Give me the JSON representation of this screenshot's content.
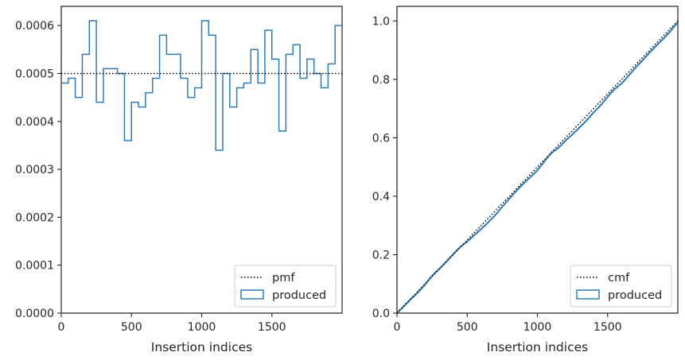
{
  "chart_data": [
    {
      "type": "step",
      "xlabel": "Insertion indices",
      "ylabel": "",
      "xlim": [
        0,
        2000
      ],
      "ylim": [
        0,
        0.00064
      ],
      "xticks": [
        0,
        500,
        1000,
        1500
      ],
      "xtick_labels": [
        "0",
        "500",
        "1000",
        "1500"
      ],
      "yticks": [
        0,
        0.0001,
        0.0002,
        0.0003,
        0.0004,
        0.0005,
        0.0006
      ],
      "ytick_labels": [
        "0.0000",
        "0.0001",
        "0.0002",
        "0.0003",
        "0.0004",
        "0.0005",
        "0.0006"
      ],
      "legend_position": "lower-right",
      "series": [
        {
          "name": "pmf",
          "style": "dotted",
          "color": "#000000",
          "x": [
            0,
            2000
          ],
          "y": [
            0.0005,
            0.0005
          ]
        },
        {
          "name": "produced",
          "style": "step-outline",
          "color": "#2c7bb6",
          "bin_edges": [
            0,
            50,
            100,
            150,
            200,
            250,
            300,
            350,
            400,
            450,
            500,
            550,
            600,
            650,
            700,
            750,
            800,
            850,
            900,
            950,
            1000,
            1050,
            1100,
            1150,
            1200,
            1250,
            1300,
            1350,
            1400,
            1450,
            1500,
            1550,
            1600,
            1650,
            1700,
            1750,
            1800,
            1850,
            1900,
            1950,
            2000
          ],
          "values": [
            0.00048,
            0.00049,
            0.00045,
            0.00054,
            0.00061,
            0.00044,
            0.00051,
            0.00051,
            0.0005,
            0.00036,
            0.00044,
            0.00043,
            0.00046,
            0.00049,
            0.00058,
            0.00054,
            0.00054,
            0.00049,
            0.00045,
            0.00047,
            0.00061,
            0.00058,
            0.00034,
            0.0005,
            0.00043,
            0.00047,
            0.00048,
            0.00055,
            0.00048,
            0.00059,
            0.00053,
            0.00038,
            0.00054,
            0.00056,
            0.00049,
            0.00053,
            0.0005,
            0.00047,
            0.00052,
            0.0006
          ]
        }
      ]
    },
    {
      "type": "line",
      "xlabel": "Insertion indices",
      "ylabel": "",
      "xlim": [
        0,
        2000
      ],
      "ylim": [
        0,
        1.05
      ],
      "xticks": [
        0,
        500,
        1000,
        1500
      ],
      "xtick_labels": [
        "0",
        "500",
        "1000",
        "1500"
      ],
      "yticks": [
        0,
        0.2,
        0.4,
        0.6,
        0.8,
        1.0
      ],
      "ytick_labels": [
        "0.0",
        "0.2",
        "0.4",
        "0.6",
        "0.8",
        "1.0"
      ],
      "legend_position": "lower-right",
      "series": [
        {
          "name": "cmf",
          "style": "dotted",
          "color": "#000000",
          "x": [
            0,
            2000
          ],
          "y": [
            0,
            1.0
          ]
        },
        {
          "name": "produced",
          "style": "line",
          "color": "#2c7bb6",
          "x": [
            0,
            50,
            100,
            150,
            200,
            250,
            300,
            350,
            400,
            450,
            500,
            550,
            600,
            650,
            700,
            750,
            800,
            850,
            900,
            950,
            1000,
            1050,
            1100,
            1150,
            1200,
            1250,
            1300,
            1350,
            1400,
            1450,
            1500,
            1550,
            1600,
            1650,
            1700,
            1750,
            1800,
            1850,
            1900,
            1950,
            2000
          ],
          "y": [
            0,
            0.024,
            0.0485,
            0.071,
            0.098,
            0.1285,
            0.1505,
            0.176,
            0.2015,
            0.2265,
            0.2445,
            0.2665,
            0.288,
            0.311,
            0.3355,
            0.3645,
            0.3915,
            0.4185,
            0.443,
            0.4655,
            0.489,
            0.5195,
            0.5485,
            0.5655,
            0.5905,
            0.612,
            0.6355,
            0.6595,
            0.687,
            0.711,
            0.7405,
            0.767,
            0.786,
            0.813,
            0.841,
            0.8655,
            0.892,
            0.917,
            0.9405,
            0.9665,
            0.9965
          ]
        }
      ]
    }
  ]
}
